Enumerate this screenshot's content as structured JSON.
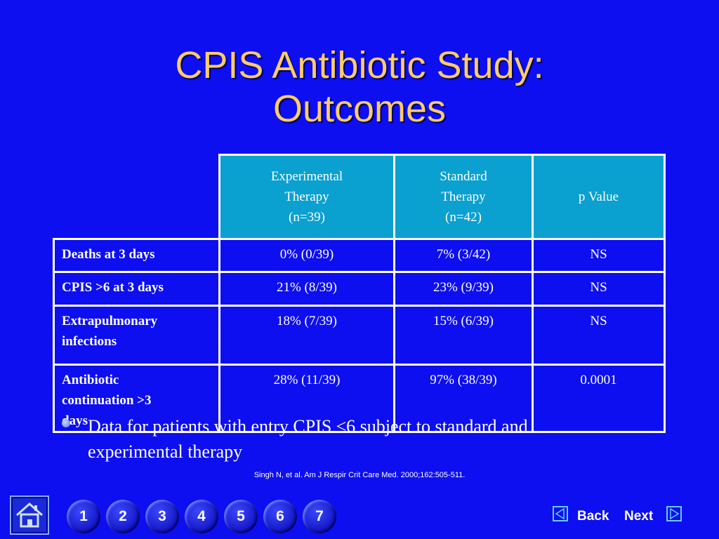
{
  "slide": {
    "title_line1": "CPIS Antibiotic Study:",
    "title_line2": "Outcomes"
  },
  "table": {
    "headers": [
      {
        "line1": "Experimental",
        "line2": "Therapy",
        "line3": "(n=39)"
      },
      {
        "line1": "Standard",
        "line2": "Therapy",
        "line3": "(n=42)"
      },
      {
        "label": "p Value"
      }
    ],
    "rows": [
      {
        "line1": "Deaths at 3 days",
        "line2": "",
        "exp": "0% (0/39)",
        "std": "7% (3/42)",
        "p": "NS"
      },
      {
        "line1": "CPIS >6 at 3 days",
        "line2": "",
        "exp": "21% (8/39)",
        "std": "23% (9/39)",
        "p": "NS"
      },
      {
        "line1": "Extrapulmonary",
        "line2": "infections",
        "exp": "18% (7/39)",
        "std": "15% (6/39)",
        "p": "NS"
      },
      {
        "line1": "Antibiotic",
        "line2": "continuation >3",
        "line3": "days",
        "exp": "28% (11/39)",
        "std": "97% (38/39)",
        "p": "0.0001"
      }
    ]
  },
  "note": {
    "line1": "Data for patients with entry CPIS ≤6 subject to standard and",
    "line2": "experimental therapy"
  },
  "citation": "Singh N, et al. Am J Respir Crit Care Med. 2000;162:505-511.",
  "nav": {
    "home_icon": "home-icon",
    "pages": [
      "1",
      "2",
      "3",
      "4",
      "5",
      "6",
      "7"
    ],
    "back_label": "Back",
    "next_label": "Next",
    "back_icon": "triangle-left-icon",
    "next_icon": "triangle-right-icon"
  },
  "colors": {
    "background": "#0d0ff0",
    "title": "#ffcc66",
    "header_fill": "#0aa0d0",
    "border": "#ffffff"
  }
}
